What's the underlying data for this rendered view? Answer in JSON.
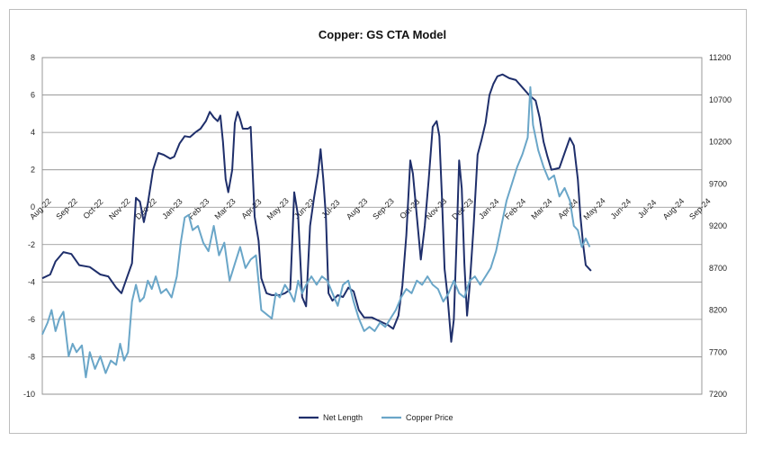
{
  "chart_data": {
    "type": "line",
    "title": "Copper: GS CTA Model",
    "x_tick_labels": [
      "Aug-22",
      "Sep-22",
      "Oct-22",
      "Nov-22",
      "Dec-22",
      "Jan-23",
      "Feb-23",
      "Mar-23",
      "Apr-23",
      "May-23",
      "Jun-23",
      "Jul-23",
      "Aug-23",
      "Sep-23",
      "Oct-23",
      "Nov-23",
      "Dec-23",
      "Jan-24",
      "Feb-24",
      "Mar-24",
      "Apr-24",
      "May-24",
      "Jun-24",
      "Jul-24",
      "Aug-24",
      "Sep-24"
    ],
    "y_left": {
      "ylim": [
        -10,
        8
      ],
      "ticks": [
        "8",
        "6",
        "4",
        "2",
        "0",
        "-2",
        "-4",
        "-6",
        "-8",
        "-10"
      ]
    },
    "y_right": {
      "ylim": [
        7200,
        11200
      ],
      "ticks": [
        "11200",
        "10700",
        "10200",
        "9700",
        "9200",
        "8700",
        "8200",
        "7700",
        "7200"
      ]
    },
    "grid": true,
    "legend": "bottom-center",
    "series": [
      {
        "name": "Net Length",
        "axis": "left",
        "color": "#1f2f6b",
        "points": [
          [
            0.0,
            -3.8
          ],
          [
            0.3,
            -3.6
          ],
          [
            0.5,
            -2.9
          ],
          [
            0.8,
            -2.4
          ],
          [
            1.1,
            -2.5
          ],
          [
            1.4,
            -3.1
          ],
          [
            1.8,
            -3.2
          ],
          [
            2.2,
            -3.6
          ],
          [
            2.5,
            -3.7
          ],
          [
            2.8,
            -4.3
          ],
          [
            3.0,
            -4.6
          ],
          [
            3.2,
            -3.8
          ],
          [
            3.4,
            -3.0
          ],
          [
            3.55,
            0.5
          ],
          [
            3.7,
            0.3
          ],
          [
            3.85,
            -0.8
          ],
          [
            4.0,
            0.2
          ],
          [
            4.2,
            2.0
          ],
          [
            4.4,
            2.9
          ],
          [
            4.6,
            2.8
          ],
          [
            4.85,
            2.6
          ],
          [
            5.0,
            2.7
          ],
          [
            5.2,
            3.4
          ],
          [
            5.4,
            3.8
          ],
          [
            5.6,
            3.75
          ],
          [
            5.8,
            4.0
          ],
          [
            6.0,
            4.2
          ],
          [
            6.2,
            4.6
          ],
          [
            6.35,
            5.1
          ],
          [
            6.5,
            4.8
          ],
          [
            6.65,
            4.6
          ],
          [
            6.75,
            4.9
          ],
          [
            6.85,
            3.5
          ],
          [
            6.95,
            1.5
          ],
          [
            7.05,
            0.8
          ],
          [
            7.2,
            2.0
          ],
          [
            7.3,
            4.5
          ],
          [
            7.4,
            5.1
          ],
          [
            7.5,
            4.7
          ],
          [
            7.6,
            4.2
          ],
          [
            7.8,
            4.2
          ],
          [
            7.9,
            4.3
          ],
          [
            8.05,
            -0.5
          ],
          [
            8.2,
            -1.8
          ],
          [
            8.3,
            -3.8
          ],
          [
            8.5,
            -4.6
          ],
          [
            8.7,
            -4.7
          ],
          [
            9.0,
            -4.7
          ],
          [
            9.2,
            -4.6
          ],
          [
            9.4,
            -4.4
          ],
          [
            9.55,
            0.8
          ],
          [
            9.7,
            -0.5
          ],
          [
            9.85,
            -4.8
          ],
          [
            10.0,
            -5.3
          ],
          [
            10.15,
            -1.0
          ],
          [
            10.3,
            0.5
          ],
          [
            10.45,
            1.8
          ],
          [
            10.55,
            3.1
          ],
          [
            10.65,
            1.5
          ],
          [
            10.75,
            -0.5
          ],
          [
            10.85,
            -4.6
          ],
          [
            11.0,
            -5.0
          ],
          [
            11.2,
            -4.7
          ],
          [
            11.4,
            -4.8
          ],
          [
            11.6,
            -4.3
          ],
          [
            11.8,
            -4.5
          ],
          [
            12.0,
            -5.5
          ],
          [
            12.2,
            -5.9
          ],
          [
            12.5,
            -5.9
          ],
          [
            12.8,
            -6.1
          ],
          [
            13.1,
            -6.3
          ],
          [
            13.3,
            -6.5
          ],
          [
            13.5,
            -5.8
          ],
          [
            13.65,
            -4.2
          ],
          [
            13.8,
            -1.5
          ],
          [
            13.95,
            2.5
          ],
          [
            14.05,
            1.8
          ],
          [
            14.2,
            -0.5
          ],
          [
            14.35,
            -2.8
          ],
          [
            14.5,
            -1.0
          ],
          [
            14.65,
            1.5
          ],
          [
            14.8,
            4.3
          ],
          [
            14.95,
            4.6
          ],
          [
            15.05,
            3.8
          ],
          [
            15.15,
            0.5
          ],
          [
            15.25,
            -3.3
          ],
          [
            15.35,
            -4.6
          ],
          [
            15.5,
            -7.2
          ],
          [
            15.6,
            -6.0
          ],
          [
            15.7,
            -2.0
          ],
          [
            15.8,
            2.5
          ],
          [
            15.9,
            1.0
          ],
          [
            16.0,
            -3.0
          ],
          [
            16.1,
            -5.8
          ],
          [
            16.2,
            -4.2
          ],
          [
            16.35,
            -1.0
          ],
          [
            16.5,
            2.8
          ],
          [
            16.65,
            3.6
          ],
          [
            16.8,
            4.5
          ],
          [
            16.95,
            6.0
          ],
          [
            17.1,
            6.6
          ],
          [
            17.25,
            7.0
          ],
          [
            17.45,
            7.1
          ],
          [
            17.7,
            6.9
          ],
          [
            17.95,
            6.8
          ],
          [
            18.2,
            6.4
          ],
          [
            18.45,
            6.0
          ],
          [
            18.7,
            5.7
          ],
          [
            18.85,
            4.8
          ],
          [
            19.0,
            3.5
          ],
          [
            19.15,
            2.7
          ],
          [
            19.3,
            2.0
          ],
          [
            19.6,
            2.1
          ],
          [
            19.8,
            2.9
          ],
          [
            20.0,
            3.7
          ],
          [
            20.15,
            3.3
          ],
          [
            20.3,
            1.5
          ],
          [
            20.4,
            -0.5
          ],
          [
            20.5,
            -2.0
          ],
          [
            20.6,
            -3.1
          ],
          [
            20.8,
            -3.4
          ]
        ]
      },
      {
        "name": "Copper Price",
        "axis": "right",
        "color": "#6aa6c8",
        "points": [
          [
            0.0,
            7910
          ],
          [
            0.2,
            8050
          ],
          [
            0.35,
            8200
          ],
          [
            0.5,
            7950
          ],
          [
            0.65,
            8100
          ],
          [
            0.8,
            8180
          ],
          [
            1.0,
            7650
          ],
          [
            1.15,
            7800
          ],
          [
            1.3,
            7700
          ],
          [
            1.5,
            7780
          ],
          [
            1.65,
            7400
          ],
          [
            1.8,
            7700
          ],
          [
            2.0,
            7500
          ],
          [
            2.2,
            7650
          ],
          [
            2.4,
            7450
          ],
          [
            2.6,
            7600
          ],
          [
            2.8,
            7550
          ],
          [
            2.95,
            7800
          ],
          [
            3.1,
            7600
          ],
          [
            3.25,
            7700
          ],
          [
            3.4,
            8300
          ],
          [
            3.55,
            8500
          ],
          [
            3.7,
            8300
          ],
          [
            3.85,
            8350
          ],
          [
            4.0,
            8550
          ],
          [
            4.15,
            8450
          ],
          [
            4.3,
            8600
          ],
          [
            4.5,
            8400
          ],
          [
            4.7,
            8450
          ],
          [
            4.9,
            8350
          ],
          [
            5.1,
            8600
          ],
          [
            5.25,
            9000
          ],
          [
            5.4,
            9300
          ],
          [
            5.55,
            9330
          ],
          [
            5.7,
            9150
          ],
          [
            5.9,
            9200
          ],
          [
            6.1,
            9000
          ],
          [
            6.3,
            8900
          ],
          [
            6.5,
            9200
          ],
          [
            6.7,
            8850
          ],
          [
            6.9,
            9000
          ],
          [
            7.1,
            8550
          ],
          [
            7.3,
            8750
          ],
          [
            7.5,
            8950
          ],
          [
            7.7,
            8700
          ],
          [
            7.9,
            8800
          ],
          [
            8.1,
            8850
          ],
          [
            8.3,
            8200
          ],
          [
            8.5,
            8150
          ],
          [
            8.7,
            8100
          ],
          [
            8.85,
            8400
          ],
          [
            9.0,
            8350
          ],
          [
            9.2,
            8500
          ],
          [
            9.4,
            8400
          ],
          [
            9.55,
            8300
          ],
          [
            9.7,
            8550
          ],
          [
            9.85,
            8400
          ],
          [
            10.0,
            8500
          ],
          [
            10.2,
            8600
          ],
          [
            10.4,
            8500
          ],
          [
            10.6,
            8600
          ],
          [
            10.8,
            8550
          ],
          [
            11.0,
            8400
          ],
          [
            11.2,
            8250
          ],
          [
            11.4,
            8500
          ],
          [
            11.6,
            8550
          ],
          [
            11.8,
            8300
          ],
          [
            12.0,
            8100
          ],
          [
            12.2,
            7950
          ],
          [
            12.4,
            8000
          ],
          [
            12.6,
            7950
          ],
          [
            12.8,
            8050
          ],
          [
            13.0,
            8000
          ],
          [
            13.2,
            8100
          ],
          [
            13.4,
            8200
          ],
          [
            13.6,
            8350
          ],
          [
            13.8,
            8450
          ],
          [
            14.0,
            8400
          ],
          [
            14.2,
            8550
          ],
          [
            14.4,
            8500
          ],
          [
            14.6,
            8600
          ],
          [
            14.8,
            8500
          ],
          [
            15.0,
            8450
          ],
          [
            15.2,
            8300
          ],
          [
            15.4,
            8400
          ],
          [
            15.6,
            8550
          ],
          [
            15.8,
            8400
          ],
          [
            16.0,
            8350
          ],
          [
            16.2,
            8550
          ],
          [
            16.4,
            8600
          ],
          [
            16.6,
            8500
          ],
          [
            16.8,
            8600
          ],
          [
            17.0,
            8700
          ],
          [
            17.2,
            8900
          ],
          [
            17.4,
            9200
          ],
          [
            17.6,
            9500
          ],
          [
            17.8,
            9700
          ],
          [
            18.0,
            9900
          ],
          [
            18.2,
            10050
          ],
          [
            18.4,
            10250
          ],
          [
            18.5,
            10850
          ],
          [
            18.6,
            10400
          ],
          [
            18.8,
            10100
          ],
          [
            19.0,
            9900
          ],
          [
            19.2,
            9750
          ],
          [
            19.4,
            9800
          ],
          [
            19.6,
            9550
          ],
          [
            19.8,
            9650
          ],
          [
            20.0,
            9500
          ],
          [
            20.15,
            9200
          ],
          [
            20.3,
            9150
          ],
          [
            20.45,
            8950
          ],
          [
            20.6,
            9050
          ],
          [
            20.75,
            8950
          ]
        ]
      }
    ]
  }
}
